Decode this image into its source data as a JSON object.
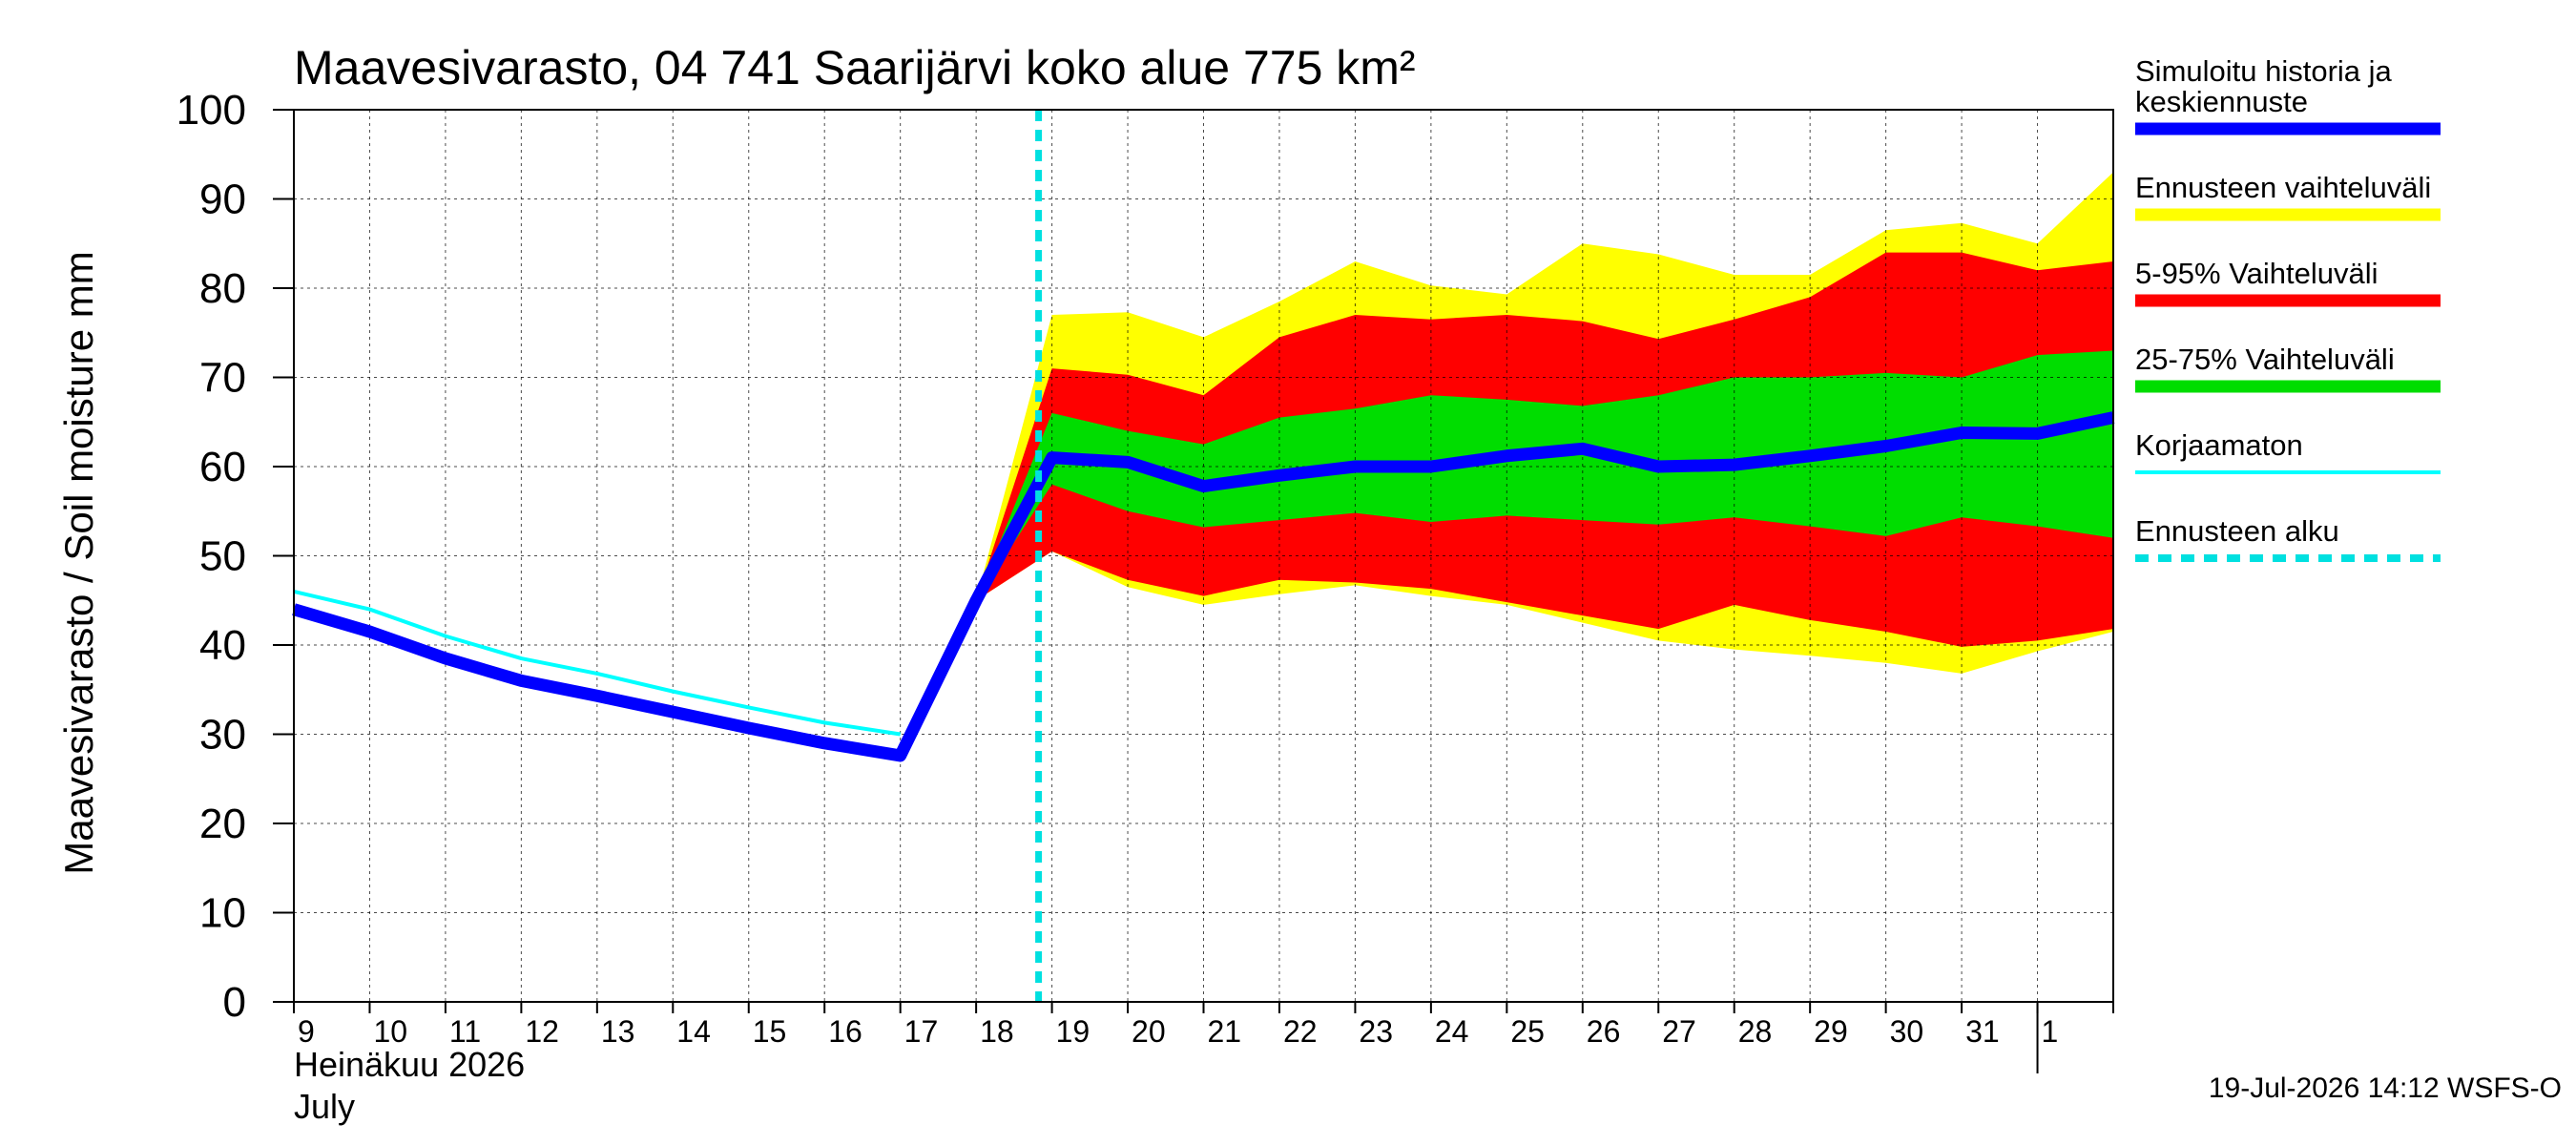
{
  "chart_data": {
    "type": "area",
    "title": "Maavesivarasto, 04 741 Saarijärvi koko alue 775 km²",
    "ylabel": "Maavesivarasto / Soil moisture   mm",
    "xlabel_line1": "Heinäkuu  2026",
    "xlabel_line2": "July",
    "footer": "19-Jul-2026 14:12 WSFS-O",
    "ylim": [
      0,
      100
    ],
    "yticks": [
      "0",
      "10",
      "20",
      "30",
      "40",
      "50",
      "60",
      "70",
      "80",
      "90",
      "100"
    ],
    "x_day_labels": [
      "9",
      "10",
      "11",
      "12",
      "13",
      "14",
      "15",
      "16",
      "17",
      "18",
      "19",
      "20",
      "21",
      "22",
      "23",
      "24",
      "25",
      "26",
      "27",
      "28",
      "29",
      "30",
      "31",
      "1"
    ],
    "grid": true,
    "forecast_start": "19",
    "colors": {
      "simulated": "#0000ff",
      "full_range": "#ffff00",
      "p5_95": "#ff0000",
      "p25_75": "#00dd00",
      "uncorrected": "#00ffff",
      "forecast_start": "#00e0e0"
    },
    "legend": [
      {
        "key": "simulated",
        "label": "Simuloitu historia ja keskiennuste",
        "lines": [
          "Simuloitu historia ja",
          "keskiennuste"
        ],
        "style": "thick"
      },
      {
        "key": "full_range",
        "label": "Ennusteen vaihteluväli",
        "lines": [
          "Ennusteen vaihteluväli"
        ],
        "style": "thick"
      },
      {
        "key": "p5_95",
        "label": "5-95% Vaihteluväli",
        "lines": [
          "5-95% Vaihteluväli"
        ],
        "style": "thick"
      },
      {
        "key": "p25_75",
        "label": "25-75% Vaihteluväli",
        "lines": [
          "25-75% Vaihteluväli"
        ],
        "style": "thick"
      },
      {
        "key": "uncorrected",
        "label": "Korjaamaton",
        "lines": [
          "Korjaamaton"
        ],
        "style": "thin"
      },
      {
        "key": "forecast_start",
        "label": "Ennusteen alku",
        "lines": [
          "Ennusteen alku"
        ],
        "style": "dashed"
      }
    ],
    "series": {
      "simulated": {
        "name": "Simuloitu historia ja keskiennuste",
        "x": [
          "9",
          "10",
          "11",
          "12",
          "13",
          "14",
          "15",
          "16",
          "17",
          "18",
          "19",
          "20",
          "21",
          "22",
          "23",
          "24",
          "25",
          "26",
          "27",
          "28",
          "29",
          "30",
          "31",
          "1",
          "2"
        ],
        "y": [
          44,
          41.5,
          38.5,
          36,
          34.3,
          32.5,
          30.7,
          29,
          27.6,
          45,
          61,
          60.5,
          57.8,
          59,
          60,
          60,
          61.2,
          62,
          60,
          60.2,
          61.2,
          62.3,
          63.8,
          63.7,
          65.5
        ]
      },
      "uncorrected": {
        "name": "Korjaamaton",
        "x": [
          "9",
          "10",
          "11",
          "12",
          "13",
          "14",
          "15",
          "16",
          "17"
        ],
        "y": [
          46,
          44,
          41,
          38.5,
          36.8,
          34.8,
          33,
          31.3,
          30
        ]
      },
      "full_range": {
        "name": "Ennusteen vaihteluväli",
        "x": [
          "18",
          "19",
          "20",
          "21",
          "22",
          "23",
          "24",
          "25",
          "26",
          "27",
          "28",
          "29",
          "30",
          "31",
          "1",
          "2"
        ],
        "upper": [
          45,
          77,
          77.3,
          74.5,
          78.5,
          83,
          80.3,
          79.3,
          85,
          83.8,
          81.5,
          81.5,
          86.5,
          87.3,
          85,
          93
        ],
        "lower": [
          45,
          50.5,
          46.5,
          44.5,
          45.7,
          46.7,
          45.5,
          44.5,
          42.5,
          40.5,
          39.5,
          38.8,
          38,
          36.8,
          39.3,
          41.5
        ]
      },
      "p5_95": {
        "name": "5-95% Vaihteluväli",
        "x": [
          "18",
          "19",
          "20",
          "21",
          "22",
          "23",
          "24",
          "25",
          "26",
          "27",
          "28",
          "29",
          "30",
          "31",
          "1",
          "2"
        ],
        "upper": [
          45,
          71,
          70.3,
          68,
          74.5,
          77,
          76.5,
          77,
          76.3,
          74.3,
          76.5,
          79,
          84,
          84,
          82,
          83
        ],
        "lower": [
          45,
          50.5,
          47.3,
          45.5,
          47.3,
          47,
          46.3,
          44.8,
          43.3,
          41.8,
          44.5,
          42.8,
          41.5,
          39.8,
          40.5,
          41.8
        ]
      },
      "p25_75": {
        "name": "25-75% Vaihteluväli",
        "x": [
          "18",
          "19",
          "20",
          "21",
          "22",
          "23",
          "24",
          "25",
          "26",
          "27",
          "28",
          "29",
          "30",
          "31",
          "1",
          "2"
        ],
        "upper": [
          45,
          66,
          64,
          62.5,
          65.5,
          66.5,
          68,
          67.5,
          66.8,
          68,
          70,
          70,
          70.5,
          70,
          72.5,
          73
        ],
        "lower": [
          45,
          58,
          55,
          53.2,
          54,
          54.8,
          53.8,
          54.5,
          54,
          53.5,
          54.3,
          53.3,
          52.2,
          54.3,
          53.3,
          52
        ]
      }
    }
  }
}
